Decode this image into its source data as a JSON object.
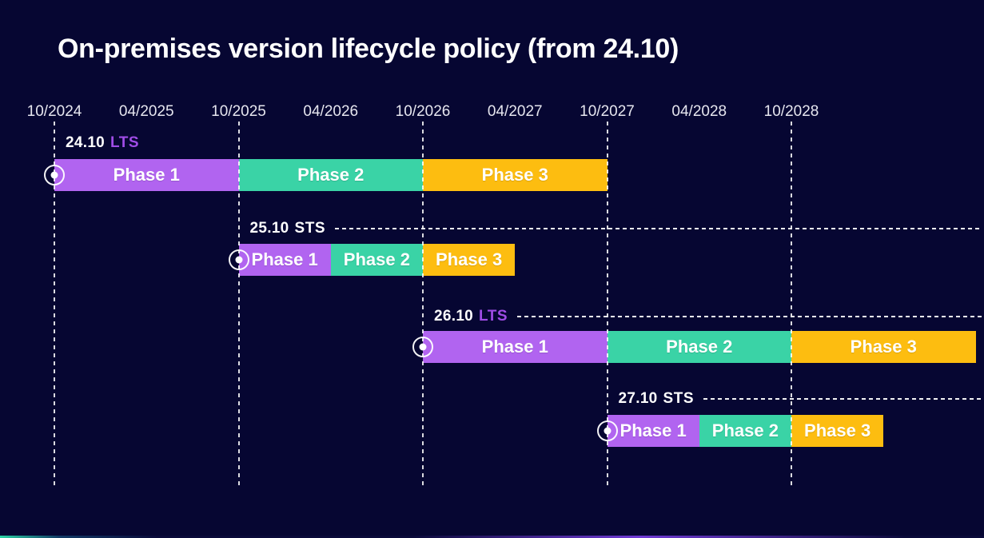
{
  "title": "On-premises version lifecycle policy (from 24.10)",
  "colors": {
    "background": "#060632",
    "phase1": "#b164f0",
    "phase2": "#3ad3a6",
    "phase3": "#fdbd10",
    "lts_text": "#9f4ce6",
    "sts_text": "#ffffff",
    "title_text": "#ffffff",
    "axis_text": "#e6e6ef"
  },
  "chart_data": {
    "type": "gantt",
    "title": "On-premises version lifecycle policy (from 24.10)",
    "x_axis": {
      "tick_labels": [
        "10/2024",
        "04/2025",
        "10/2025",
        "04/2026",
        "10/2026",
        "04/2027",
        "10/2027",
        "04/2028",
        "10/2028"
      ],
      "gridlines_at": [
        "10/2024",
        "10/2025",
        "10/2026",
        "10/2027",
        "10/2028"
      ],
      "grid_style": "dashed-vertical"
    },
    "rows": [
      {
        "version": "24.10",
        "channel": "LTS",
        "release_marker": "10/2024",
        "guide_line": false,
        "phases": [
          {
            "label": "Phase 1",
            "start": "10/2024",
            "end": "10/2025",
            "color_key": "phase1"
          },
          {
            "label": "Phase 2",
            "start": "10/2025",
            "end": "10/2026",
            "color_key": "phase2"
          },
          {
            "label": "Phase 3",
            "start": "10/2026",
            "end": "10/2027",
            "color_key": "phase3"
          }
        ]
      },
      {
        "version": "25.10",
        "channel": "STS",
        "release_marker": "10/2025",
        "guide_line": true,
        "phases": [
          {
            "label": "Phase 1",
            "start": "10/2025",
            "end": "04/2026",
            "color_key": "phase1"
          },
          {
            "label": "Phase 2",
            "start": "04/2026",
            "end": "10/2026",
            "color_key": "phase2"
          },
          {
            "label": "Phase 3",
            "start": "10/2026",
            "end": "04/2027",
            "color_key": "phase3"
          }
        ]
      },
      {
        "version": "26.10",
        "channel": "LTS",
        "release_marker": "10/2026",
        "guide_line": true,
        "phases": [
          {
            "label": "Phase 1",
            "start": "10/2026",
            "end": "10/2027",
            "color_key": "phase1"
          },
          {
            "label": "Phase 2",
            "start": "10/2027",
            "end": "10/2028",
            "color_key": "phase2"
          },
          {
            "label": "Phase 3",
            "start": "10/2028",
            "end": "10/2029",
            "color_key": "phase3"
          }
        ]
      },
      {
        "version": "27.10",
        "channel": "STS",
        "release_marker": "10/2027",
        "guide_line": true,
        "phases": [
          {
            "label": "Phase 1",
            "start": "10/2027",
            "end": "04/2028",
            "color_key": "phase1"
          },
          {
            "label": "Phase 2",
            "start": "04/2028",
            "end": "10/2028",
            "color_key": "phase2"
          },
          {
            "label": "Phase 3",
            "start": "10/2028",
            "end": "04/2029",
            "color_key": "phase3"
          }
        ]
      }
    ]
  }
}
